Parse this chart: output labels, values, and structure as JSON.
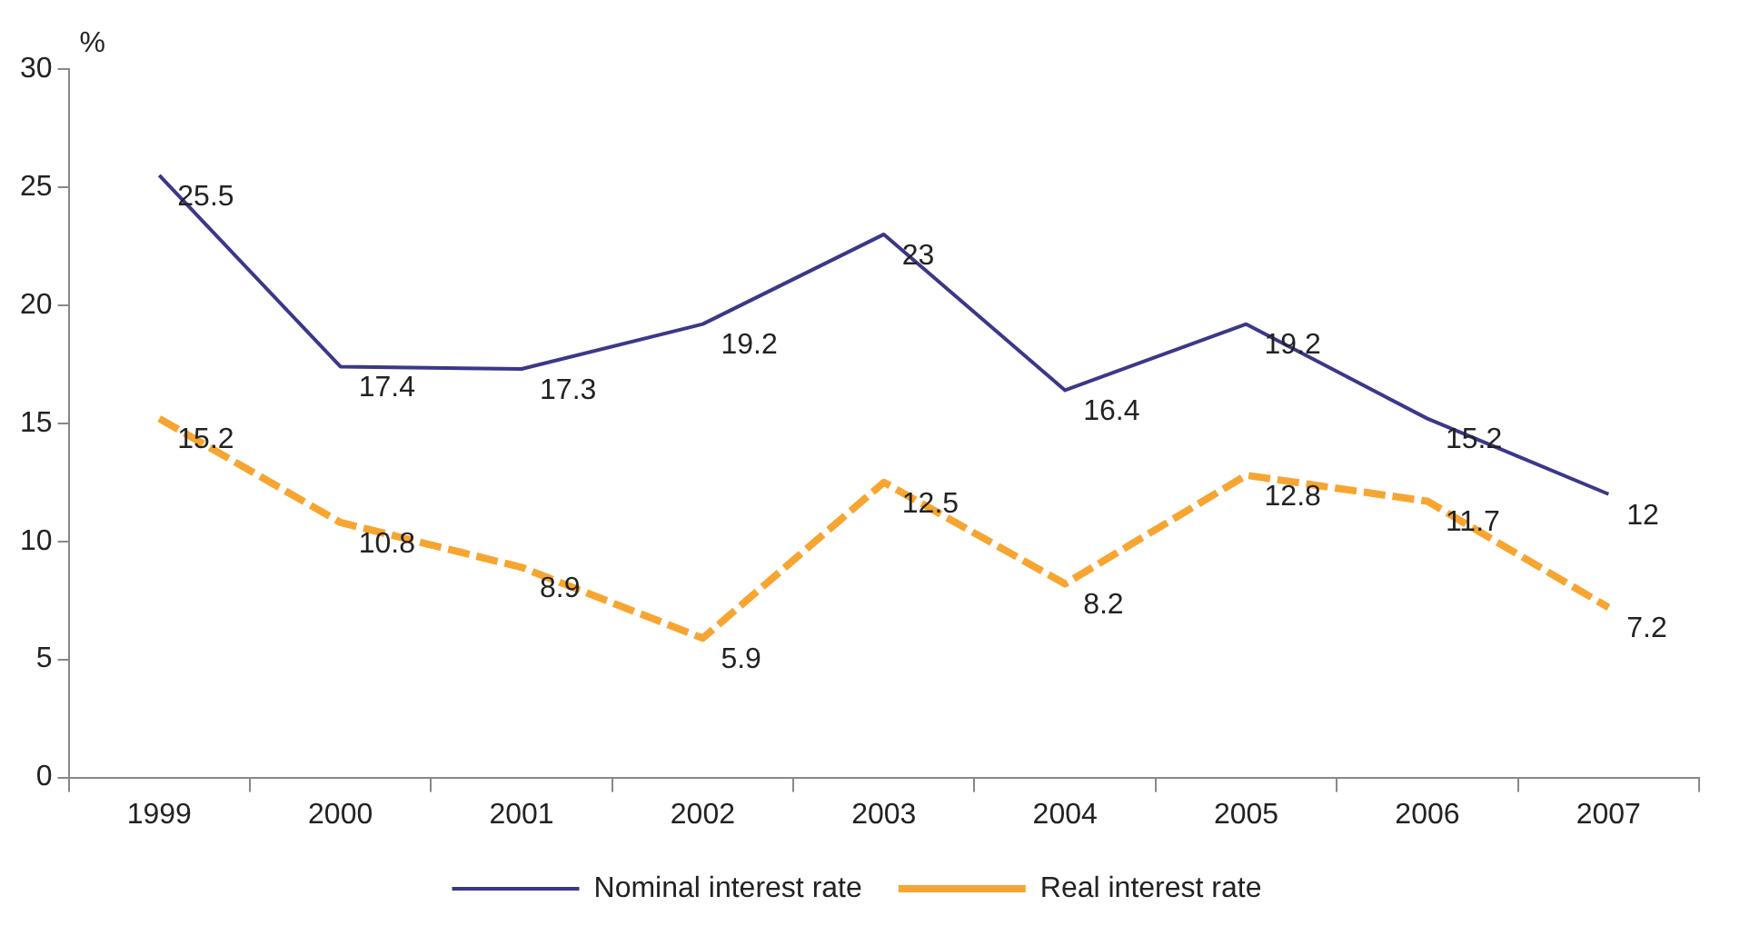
{
  "chart_data": {
    "type": "line",
    "ylabel": "%",
    "categories": [
      "1999",
      "2000",
      "2001",
      "2002",
      "2003",
      "2004",
      "2005",
      "2006",
      "2007"
    ],
    "series": [
      {
        "name": "Nominal interest rate",
        "color": "#3b3889",
        "line_style": "solid",
        "values": [
          25.5,
          17.4,
          17.3,
          19.2,
          23,
          16.4,
          19.2,
          15.2,
          12
        ]
      },
      {
        "name": "Real interest rate",
        "color": "#f7a531",
        "line_style": "dashed",
        "values": [
          15.2,
          10.8,
          8.9,
          5.9,
          12.5,
          8.2,
          12.8,
          11.7,
          7.2
        ]
      }
    ],
    "ylim": [
      0,
      30
    ],
    "yticks": [
      0,
      5,
      10,
      15,
      20,
      25,
      30
    ],
    "grid": false,
    "legend": "bottom",
    "marker": "none",
    "data_labels": true
  }
}
